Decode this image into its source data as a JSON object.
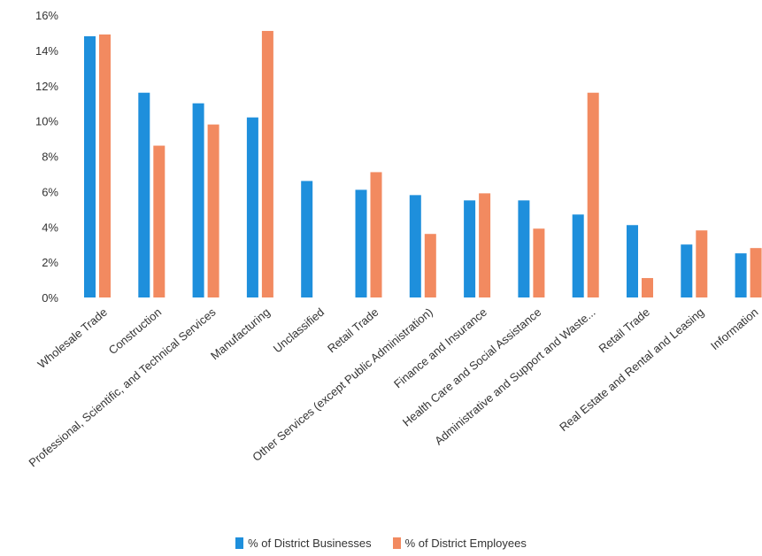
{
  "chart_data": {
    "type": "bar",
    "categories": [
      "Wholesale Trade",
      "Construction",
      "Professional, Scientific, and Technical Services",
      "Manufacturing",
      "Unclassified",
      "Retail Trade",
      "Other Services (except Public Administration)",
      "Finance and Insurance",
      "Health Care and Social Assistance",
      "Administrative and Support and Waste...",
      "Retail Trade",
      "Real Estate and Rental and Leasing",
      "Information"
    ],
    "series": [
      {
        "name": "% of District Businesses",
        "color": "#1e8fdc",
        "values": [
          14.8,
          11.6,
          11.0,
          10.2,
          6.6,
          6.1,
          5.8,
          5.5,
          5.5,
          4.7,
          4.1,
          3.0,
          2.5
        ]
      },
      {
        "name": "% of District Employees",
        "color": "#f28a60",
        "values": [
          14.9,
          8.6,
          9.8,
          15.1,
          0,
          7.1,
          3.6,
          5.9,
          3.9,
          11.6,
          1.1,
          3.8,
          2.8
        ]
      }
    ],
    "yticks": [
      "0%",
      "2%",
      "4%",
      "6%",
      "8%",
      "10%",
      "12%",
      "14%",
      "16%"
    ],
    "ylim": [
      0,
      16
    ],
    "grid": false,
    "legend_position": "bottom"
  }
}
